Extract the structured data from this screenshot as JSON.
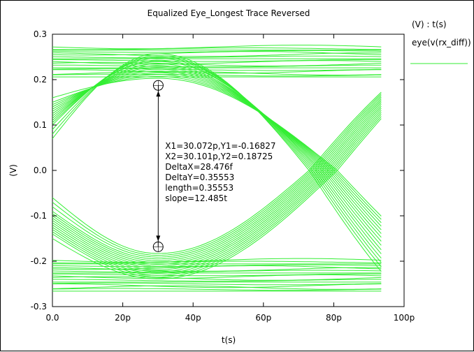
{
  "chart_data": {
    "type": "line",
    "title": "Equalized Eye_Longest Trace Reversed",
    "xlabel": "t(s)",
    "ylabel": "(V)",
    "xlim": [
      0,
      100
    ],
    "ylim": [
      -0.3,
      0.3
    ],
    "x_ticks": [
      {
        "value": 0,
        "label": "0.0"
      },
      {
        "value": 20,
        "label": "20p"
      },
      {
        "value": 40,
        "label": "40p"
      },
      {
        "value": 60,
        "label": "60p"
      },
      {
        "value": 80,
        "label": "80p"
      },
      {
        "value": 100,
        "label": "100p"
      }
    ],
    "y_ticks": [
      {
        "value": 0.3,
        "label": "0.3"
      },
      {
        "value": 0.2,
        "label": "0.2"
      },
      {
        "value": 0.1,
        "label": "0.1"
      },
      {
        "value": 0.0,
        "label": "0.0"
      },
      {
        "value": -0.1,
        "label": "-0.1"
      },
      {
        "value": -0.2,
        "label": "-0.2"
      },
      {
        "value": -0.3,
        "label": "-0.3"
      }
    ],
    "legend": {
      "header": "(V) : t(s)",
      "entries": [
        {
          "name": "eye(v(rx_diff))",
          "color": "#33ee33"
        }
      ],
      "placement": "right"
    },
    "series": [
      {
        "name": "eye(v(rx_diff))",
        "color": "#33ee33",
        "x_range": [
          0,
          93.5
        ],
        "high_levels": [
          0.272,
          0.268,
          0.265,
          0.262,
          0.258,
          0.255,
          0.25,
          0.246,
          0.242,
          0.238,
          0.234,
          0.23,
          0.226,
          0.222,
          0.218,
          0.214,
          0.21,
          0.206
        ],
        "low_levels": [
          -0.198,
          -0.202,
          -0.206,
          -0.21,
          -0.214,
          -0.218,
          -0.222,
          -0.226,
          -0.23,
          -0.234,
          -0.238,
          -0.242,
          -0.246,
          -0.25,
          -0.254,
          -0.258,
          -0.262,
          -0.266
        ],
        "rising_start_levels": [
          0.07,
          0.08,
          0.09,
          0.1,
          0.105,
          0.11,
          0.115,
          0.12,
          0.125,
          0.13,
          0.135,
          0.14,
          0.145,
          0.15,
          0.16
        ],
        "falling_start_levels": [
          -0.06,
          -0.07,
          -0.08,
          -0.09,
          -0.095,
          -0.1,
          -0.105,
          -0.11,
          -0.115,
          -0.12,
          -0.125,
          -0.13,
          -0.135,
          -0.14,
          -0.15
        ],
        "crossing_x_range": [
          73,
          81
        ]
      }
    ],
    "marker": {
      "p1": {
        "x": 30.072,
        "y": -0.16827
      },
      "p2": {
        "x": 30.101,
        "y": 0.18725
      },
      "labels": [
        "X1=30.072p,Y1=-0.16827",
        "X2=30.101p,Y2=0.18725",
        "DeltaX=28.476f",
        "DeltaY=0.35553",
        "length=0.35553",
        "slope=12.485t"
      ]
    },
    "grid": false
  }
}
